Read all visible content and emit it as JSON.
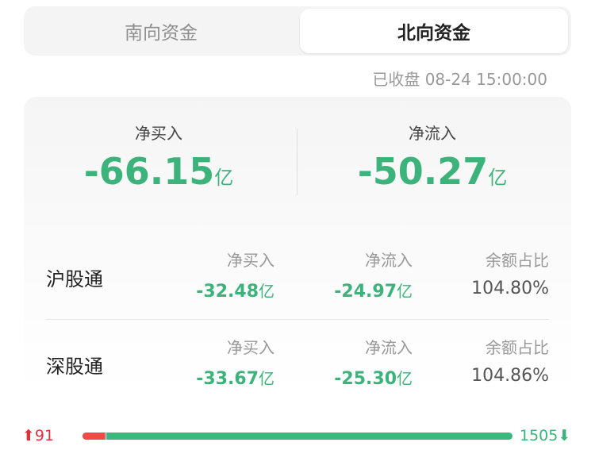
{
  "tabs": [
    {
      "label": "南向资金",
      "active": false
    },
    {
      "label": "北向资金",
      "active": true
    }
  ],
  "status_time": "已收盘 08-24 15:00:00",
  "summary": [
    {
      "label": "净买入",
      "value": "-66.15",
      "unit": "亿"
    },
    {
      "label": "净流入",
      "value": "-50.27",
      "unit": "亿"
    }
  ],
  "rows": [
    {
      "name": "沪股通",
      "cols": [
        {
          "label": "净买入",
          "value": "-32.48",
          "unit": "亿"
        },
        {
          "label": "净流入",
          "value": "-24.97",
          "unit": "亿"
        },
        {
          "label": "余额占比",
          "value": "104.80%"
        }
      ]
    },
    {
      "name": "深股通",
      "cols": [
        {
          "label": "净买入",
          "value": "-33.67",
          "unit": "亿"
        },
        {
          "label": "净流入",
          "value": "-25.30",
          "unit": "亿"
        },
        {
          "label": "余额占比",
          "value": "104.86%"
        }
      ]
    }
  ],
  "breadth": {
    "up": "91",
    "down": "1505",
    "up_color": "#e0303a",
    "down_color": "#3bb37b"
  }
}
